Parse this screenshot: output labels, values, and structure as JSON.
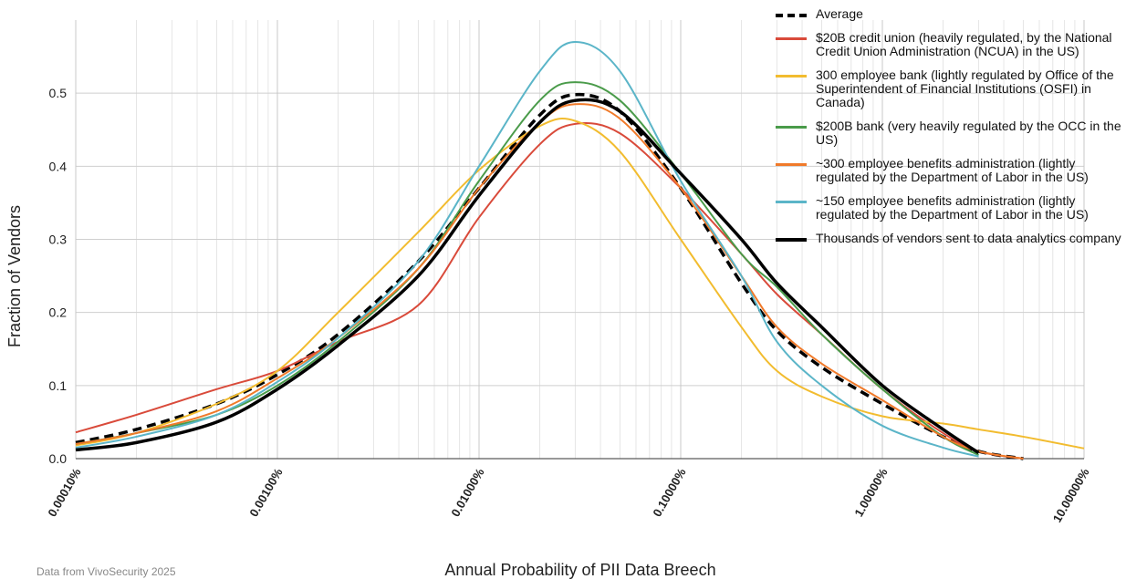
{
  "chart_data": {
    "type": "line",
    "xlabel": "Annual Probability of PII Data Breech",
    "ylabel": "Fraction of Vendors",
    "source": "Data from VivoSecurity 2025",
    "xscale": "log",
    "xlim": [
      0.0001,
      10
    ],
    "xticks": [
      {
        "value": 0.0001,
        "label": "0.00010%"
      },
      {
        "value": 0.001,
        "label": "0.00100%"
      },
      {
        "value": 0.01,
        "label": "0.01000%"
      },
      {
        "value": 0.1,
        "label": "0.10000%"
      },
      {
        "value": 1,
        "label": "1.00000%"
      },
      {
        "value": 10,
        "label": "10.00000%"
      }
    ],
    "xminorticks": [
      0.0002,
      0.0003,
      0.0004,
      0.0005,
      0.0006,
      0.0007,
      0.0008,
      0.0009,
      0.002,
      0.003,
      0.004,
      0.005,
      0.006,
      0.007,
      0.008,
      0.009,
      0.02,
      0.03,
      0.04,
      0.05,
      0.06,
      0.07,
      0.08,
      0.09,
      0.2,
      0.3,
      0.4,
      0.5,
      0.6,
      0.7,
      0.8,
      0.9,
      2,
      3,
      4,
      5,
      6,
      7,
      8,
      9
    ],
    "ylim": [
      0,
      0.6
    ],
    "yticks": [
      {
        "value": 0,
        "label": "0.0"
      },
      {
        "value": 0.1,
        "label": "0.1"
      },
      {
        "value": 0.2,
        "label": "0.2"
      },
      {
        "value": 0.3,
        "label": "0.3"
      },
      {
        "value": 0.4,
        "label": "0.4"
      },
      {
        "value": 0.5,
        "label": "0.5"
      }
    ],
    "grid": true,
    "legend": "upper right",
    "x": [
      0.0001,
      0.0002,
      0.0005,
      0.001,
      0.002,
      0.005,
      0.01,
      0.02,
      0.03,
      0.05,
      0.1,
      0.2,
      0.3,
      0.5,
      1,
      2,
      3,
      5,
      10
    ],
    "series": [
      {
        "name": "Average",
        "color": "#000000",
        "dash": true,
        "values": [
          0.022,
          0.04,
          0.075,
          0.115,
          0.17,
          0.27,
          0.37,
          0.47,
          0.498,
          0.475,
          0.37,
          0.24,
          0.175,
          0.125,
          0.075,
          0.03,
          0.01,
          0.0,
          null
        ]
      },
      {
        "name": "$20B credit union (heavily regulated, by the National Credit Union Administration (NCUA) in the US)",
        "color": "#d94a3a",
        "values": [
          0.036,
          0.06,
          0.095,
          0.12,
          0.16,
          0.21,
          0.33,
          0.43,
          0.458,
          0.445,
          0.37,
          0.28,
          0.225,
          0.17,
          0.095,
          0.035,
          0.01,
          0.0,
          null
        ]
      },
      {
        "name": "300 employee bank (lightly regulated by Office of the Superintendent of Financial Institutions (OSFI) in Canada)",
        "color": "#f2bc2f",
        "values": [
          0.018,
          0.035,
          0.075,
          0.12,
          0.2,
          0.31,
          0.395,
          0.455,
          0.462,
          0.42,
          0.3,
          0.18,
          0.12,
          0.085,
          0.058,
          0.048,
          0.04,
          0.03,
          0.014
        ]
      },
      {
        "name": "$200B bank (very heavily regulated by the OCC in the US)",
        "color": "#4a9b4a",
        "values": [
          0.02,
          0.035,
          0.06,
          0.1,
          0.16,
          0.26,
          0.38,
          0.49,
          0.515,
          0.49,
          0.39,
          0.28,
          0.235,
          0.17,
          0.095,
          0.03,
          0.005,
          null,
          null
        ]
      },
      {
        "name": "~300 employee benefits administration (lightly regulated by the Department of Labor in the US)",
        "color": "#f07a2a",
        "values": [
          0.02,
          0.035,
          0.065,
          0.11,
          0.165,
          0.26,
          0.37,
          0.46,
          0.485,
          0.465,
          0.37,
          0.25,
          0.18,
          0.13,
          0.08,
          0.03,
          0.01,
          0.0,
          null
        ]
      },
      {
        "name": "~150 employee benefits administration (lightly regulated by the Department of Labor in the US)",
        "color": "#5bb5c8",
        "values": [
          0.015,
          0.03,
          0.06,
          0.105,
          0.165,
          0.27,
          0.4,
          0.53,
          0.57,
          0.53,
          0.38,
          0.25,
          0.16,
          0.1,
          0.045,
          0.015,
          0.003,
          null,
          null
        ]
      },
      {
        "name": "Thousands of vendors sent to data analytics company",
        "color": "#000000",
        "values": [
          0.012,
          0.022,
          0.05,
          0.095,
          0.155,
          0.25,
          0.36,
          0.46,
          0.49,
          0.475,
          0.39,
          0.3,
          0.24,
          0.18,
          0.1,
          0.04,
          0.008,
          null,
          null
        ]
      }
    ]
  }
}
